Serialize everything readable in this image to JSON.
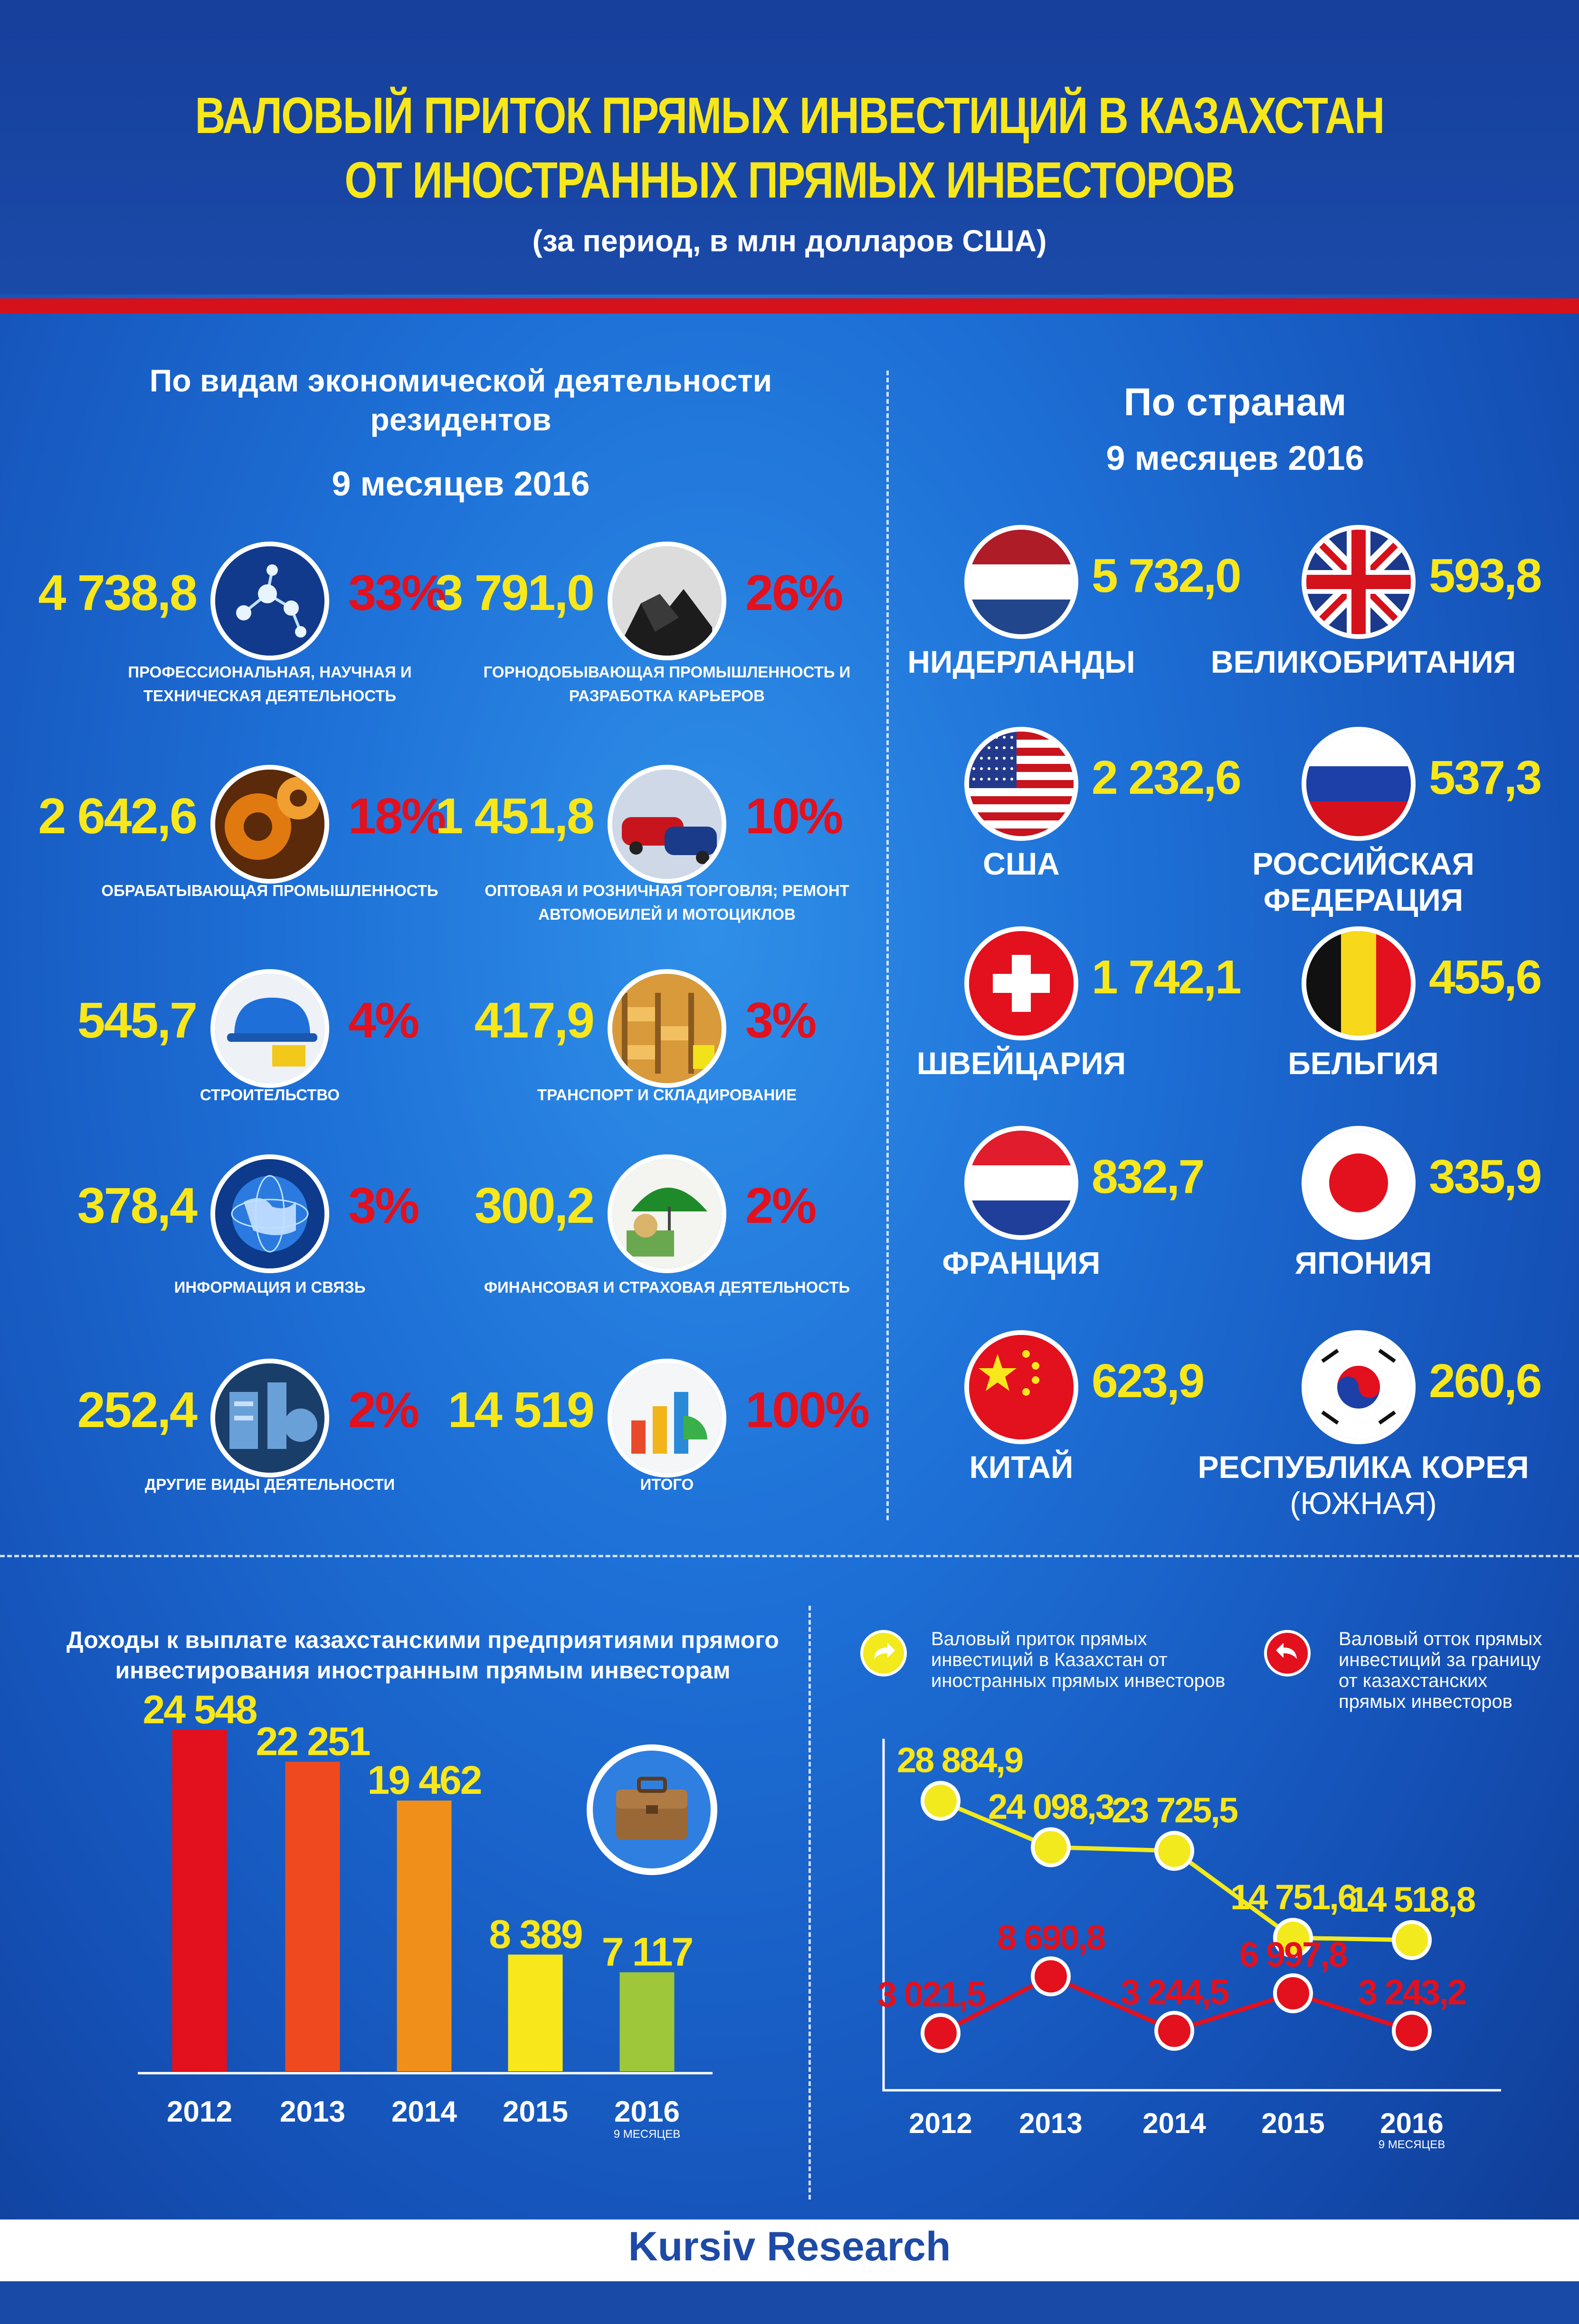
{
  "header": {
    "title_line1": "ВАЛОВЫЙ ПРИТОК ПРЯМЫХ ИНВЕСТИЦИЙ В КАЗАХСТАН",
    "title_line2": "ОТ ИНОСТРАННЫХ ПРЯМЫХ ИНВЕСТОРОВ",
    "subtitle": "(за период, в млн долларов США)"
  },
  "sectors": {
    "title": "По видам экономической деятельности резидентов",
    "period": "9 месяцев 2016",
    "items": [
      {
        "value": "4 738,8",
        "share": "33%",
        "label": "ПРОФЕССИОНАЛЬНАЯ, НАУЧНАЯ И ТЕХНИЧЕСКАЯ ДЕЯТЕЛЬНОСТЬ",
        "icon": "molecule-icon"
      },
      {
        "value": "3 791,0",
        "share": "26%",
        "label": "ГОРНОДОБЫВАЮЩАЯ ПРОМЫШЛЕННОСТЬ И РАЗРАБОТКА КАРЬЕРОВ",
        "icon": "coal-icon"
      },
      {
        "value": "2 642,6",
        "share": "18%",
        "label": "ОБРАБАТЫВАЮЩАЯ ПРОМЫШЛЕННОСТЬ",
        "icon": "gears-icon"
      },
      {
        "value": "1 451,8",
        "share": "10%",
        "label": "ОПТОВАЯ И РОЗНИЧНАЯ ТОРГОВЛЯ; РЕМОНТ АВТОМОБИЛЕЙ И МОТОЦИКЛОВ",
        "icon": "cars-icon"
      },
      {
        "value": "545,7",
        "share": "4%",
        "label": "СТРОИТЕЛЬСТВО",
        "icon": "helmet-icon"
      },
      {
        "value": "417,9",
        "share": "3%",
        "label": "ТРАНСПОРТ И СКЛАДИРОВАНИЕ",
        "icon": "warehouse-icon"
      },
      {
        "value": "378,4",
        "share": "3%",
        "label": "ИНФОРМАЦИЯ И СВЯЗЬ",
        "icon": "globe-icon"
      },
      {
        "value": "300,2",
        "share": "2%",
        "label": "ФИНАНСОВАЯ И СТРАХОВАЯ ДЕЯТЕЛЬНОСТЬ",
        "icon": "umbrella-money-icon"
      },
      {
        "value": "252,4",
        "share": "2%",
        "label": "ДРУГИЕ ВИДЫ ДЕЯТЕЛЬНОСТИ",
        "icon": "machinery-icon"
      },
      {
        "value": "14 519",
        "share": "100%",
        "label": "ИТОГО",
        "icon": "chart-icon"
      }
    ]
  },
  "countries": {
    "title": "По странам",
    "period": "9 месяцев 2016",
    "items": [
      {
        "value": "5 732,0",
        "name": "НИДЕРЛАНДЫ",
        "flag": "netherlands-flag-icon"
      },
      {
        "value": "593,8",
        "name": "ВЕЛИКОБРИТАНИЯ",
        "flag": "uk-flag-icon"
      },
      {
        "value": "2 232,6",
        "name": "США",
        "flag": "usa-flag-icon"
      },
      {
        "value": "537,3",
        "name": "РОССИЙСКАЯ ФЕДЕРАЦИЯ",
        "flag": "russia-flag-icon"
      },
      {
        "value": "1 742,1",
        "name": "ШВЕЙЦАРИЯ",
        "flag": "switzerland-flag-icon"
      },
      {
        "value": "455,6",
        "name": "БЕЛЬГИЯ",
        "flag": "belgium-flag-icon"
      },
      {
        "value": "832,7",
        "name": "ФРАНЦИЯ",
        "flag": "france-flag-icon"
      },
      {
        "value": "335,9",
        "name": "ЯПОНИЯ",
        "flag": "japan-flag-icon"
      },
      {
        "value": "623,9",
        "name": "КИТАЙ",
        "flag": "china-flag-icon"
      },
      {
        "value": "260,6",
        "name": "РЕСПУБЛИКА КОРЕЯ",
        "name_suffix": " (ЮЖНАЯ)",
        "flag": "korea-flag-icon"
      }
    ]
  },
  "chart_data": [
    {
      "type": "bar",
      "title": "Доходы к выплате казахстанскими предприятиями прямого инвестирования иностранным прямым инвесторам",
      "categories": [
        "2012",
        "2013",
        "2014",
        "2015",
        "2016"
      ],
      "category_notes": [
        "",
        "",
        "",
        "",
        "9 МЕСЯЦЕВ"
      ],
      "values": [
        24548,
        22251,
        19462,
        8389,
        7117
      ],
      "value_labels": [
        "24 548",
        "22 251",
        "19 462",
        "8 389",
        "7 117"
      ],
      "colors": [
        "#e3101d",
        "#ef4a1f",
        "#f0901a",
        "#f8e71a",
        "#9ec73a"
      ],
      "ylim": [
        0,
        30000
      ]
    },
    {
      "type": "line",
      "categories": [
        "2012",
        "2013",
        "2014",
        "2015",
        "2016"
      ],
      "category_notes": [
        "",
        "",
        "",
        "",
        "9 МЕСЯЦЕВ"
      ],
      "series": [
        {
          "name": "Валовый приток прямых инвестиций в Казахстан от иностранных прямых инвесторов",
          "values": [
            28884.9,
            24098.3,
            23725.5,
            14751.6,
            14518.8
          ],
          "labels": [
            "28 884,9",
            "24 098,3",
            "23 725,5",
            "14 751,6",
            "14 518,8"
          ],
          "color": "#f2ea1c"
        },
        {
          "name": "Валовый отток прямых инвестиций за границу от казахстанских прямых инвесторов",
          "values": [
            3021.5,
            8690.8,
            3244.5,
            6997.8,
            3243.2
          ],
          "labels": [
            "3 021,5",
            "8 690,8",
            "3 244,5",
            "6 997,8",
            "3 243,2"
          ],
          "color": "#e3101d"
        }
      ]
    }
  ],
  "footer": {
    "brand": "Kursiv Research"
  }
}
